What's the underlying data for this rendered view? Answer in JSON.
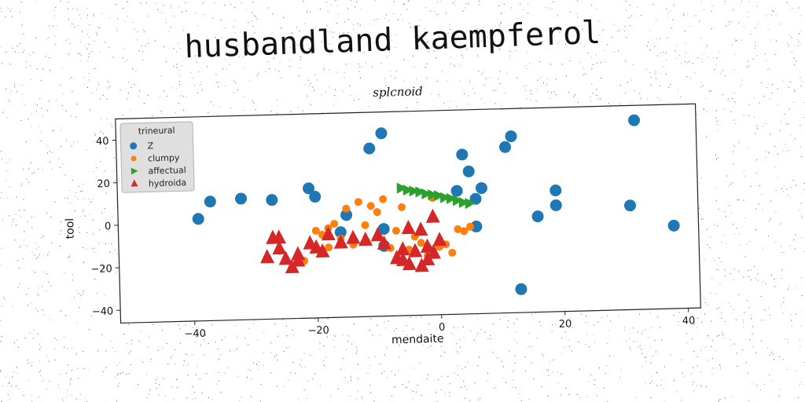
{
  "header": {
    "title": "husbandland kaempferol"
  },
  "colors": {
    "Z": "#1f77b4",
    "clumpy": "#ff7f0e",
    "affectual": "#2ca02c",
    "hydroida": "#d62728"
  },
  "chart_data": {
    "type": "scatter",
    "title": "splcnoid",
    "xlabel": "mendaite",
    "ylabel": "tool",
    "xlim": [
      -52,
      42
    ],
    "ylim": [
      -46,
      50
    ],
    "xticks": [
      -40,
      -20,
      0,
      20,
      40
    ],
    "yticks": [
      -40,
      -20,
      0,
      20,
      40
    ],
    "legend": {
      "title": "trineural",
      "placement": "upper-left"
    },
    "series": [
      {
        "name": "Z",
        "marker": "circle",
        "points": [
          [
            -39,
            2
          ],
          [
            -37,
            10
          ],
          [
            -32,
            11
          ],
          [
            -27,
            10
          ],
          [
            -21,
            15
          ],
          [
            -20,
            11
          ],
          [
            -15,
            2
          ],
          [
            -16,
            -6
          ],
          [
            -11,
            33
          ],
          [
            -9,
            40
          ],
          [
            -9,
            -5
          ],
          [
            -9,
            -13
          ],
          [
            3,
            12
          ],
          [
            4,
            29
          ],
          [
            5,
            21
          ],
          [
            6,
            8
          ],
          [
            7,
            13
          ],
          [
            6,
            -5
          ],
          [
            11,
            32
          ],
          [
            12,
            37
          ],
          [
            13,
            -35
          ],
          [
            16,
            -1
          ],
          [
            19,
            4
          ],
          [
            19,
            11
          ],
          [
            31,
            3
          ],
          [
            32,
            43
          ],
          [
            38,
            -7
          ]
        ]
      },
      {
        "name": "clumpy",
        "marker": "circle",
        "points": [
          [
            -26,
            -14
          ],
          [
            -22,
            -19
          ],
          [
            -20,
            -5
          ],
          [
            -19,
            -7
          ],
          [
            -18,
            -4
          ],
          [
            -18,
            -13
          ],
          [
            -17,
            -2
          ],
          [
            -16,
            -9
          ],
          [
            -15,
            5
          ],
          [
            -14,
            -12
          ],
          [
            -13,
            8
          ],
          [
            -12,
            -3
          ],
          [
            -11,
            6
          ],
          [
            -10,
            3
          ],
          [
            -9,
            9
          ],
          [
            -8,
            -14
          ],
          [
            -7,
            -6
          ],
          [
            -6,
            5
          ],
          [
            -5,
            -15
          ],
          [
            -4,
            -9
          ],
          [
            -3,
            -12
          ],
          [
            -2,
            -18
          ],
          [
            -1,
            9
          ],
          [
            -1,
            -15
          ],
          [
            0,
            -14
          ],
          [
            1,
            -13
          ],
          [
            2,
            -17
          ],
          [
            3,
            -6
          ],
          [
            4,
            -7
          ],
          [
            5,
            -5
          ]
        ]
      },
      {
        "name": "affectual",
        "marker": "triangle-right",
        "points": [
          [
            -6,
            14
          ],
          [
            -5,
            13
          ],
          [
            -4,
            12.5
          ],
          [
            -3,
            12
          ],
          [
            -2,
            11
          ],
          [
            -1,
            10.5
          ],
          [
            0,
            10
          ],
          [
            1,
            9
          ],
          [
            2,
            8.5
          ],
          [
            3,
            7.5
          ],
          [
            4,
            6.5
          ],
          [
            5,
            6
          ]
        ]
      },
      {
        "name": "hydroida",
        "marker": "triangle-up",
        "points": [
          [
            -28,
            -17
          ],
          [
            -27,
            -8
          ],
          [
            -26,
            -8
          ],
          [
            -26,
            -13
          ],
          [
            -25,
            -18
          ],
          [
            -24,
            -22
          ],
          [
            -23,
            -16
          ],
          [
            -23,
            -19
          ],
          [
            -21,
            -11
          ],
          [
            -20,
            -13
          ],
          [
            -19,
            -15
          ],
          [
            -18,
            -7
          ],
          [
            -16,
            -11
          ],
          [
            -14,
            -9
          ],
          [
            -12,
            -10
          ],
          [
            -10,
            -8
          ],
          [
            -9,
            -12
          ],
          [
            -7,
            -19
          ],
          [
            -6,
            -15
          ],
          [
            -6,
            -20
          ],
          [
            -5,
            -5
          ],
          [
            -4,
            -16
          ],
          [
            -3,
            -6
          ],
          [
            -2,
            -14
          ],
          [
            -2,
            -20
          ],
          [
            -1,
            -17
          ],
          [
            0,
            -11
          ],
          [
            -1,
            0
          ],
          [
            -3,
            -23
          ],
          [
            -5,
            -22
          ]
        ]
      }
    ]
  }
}
